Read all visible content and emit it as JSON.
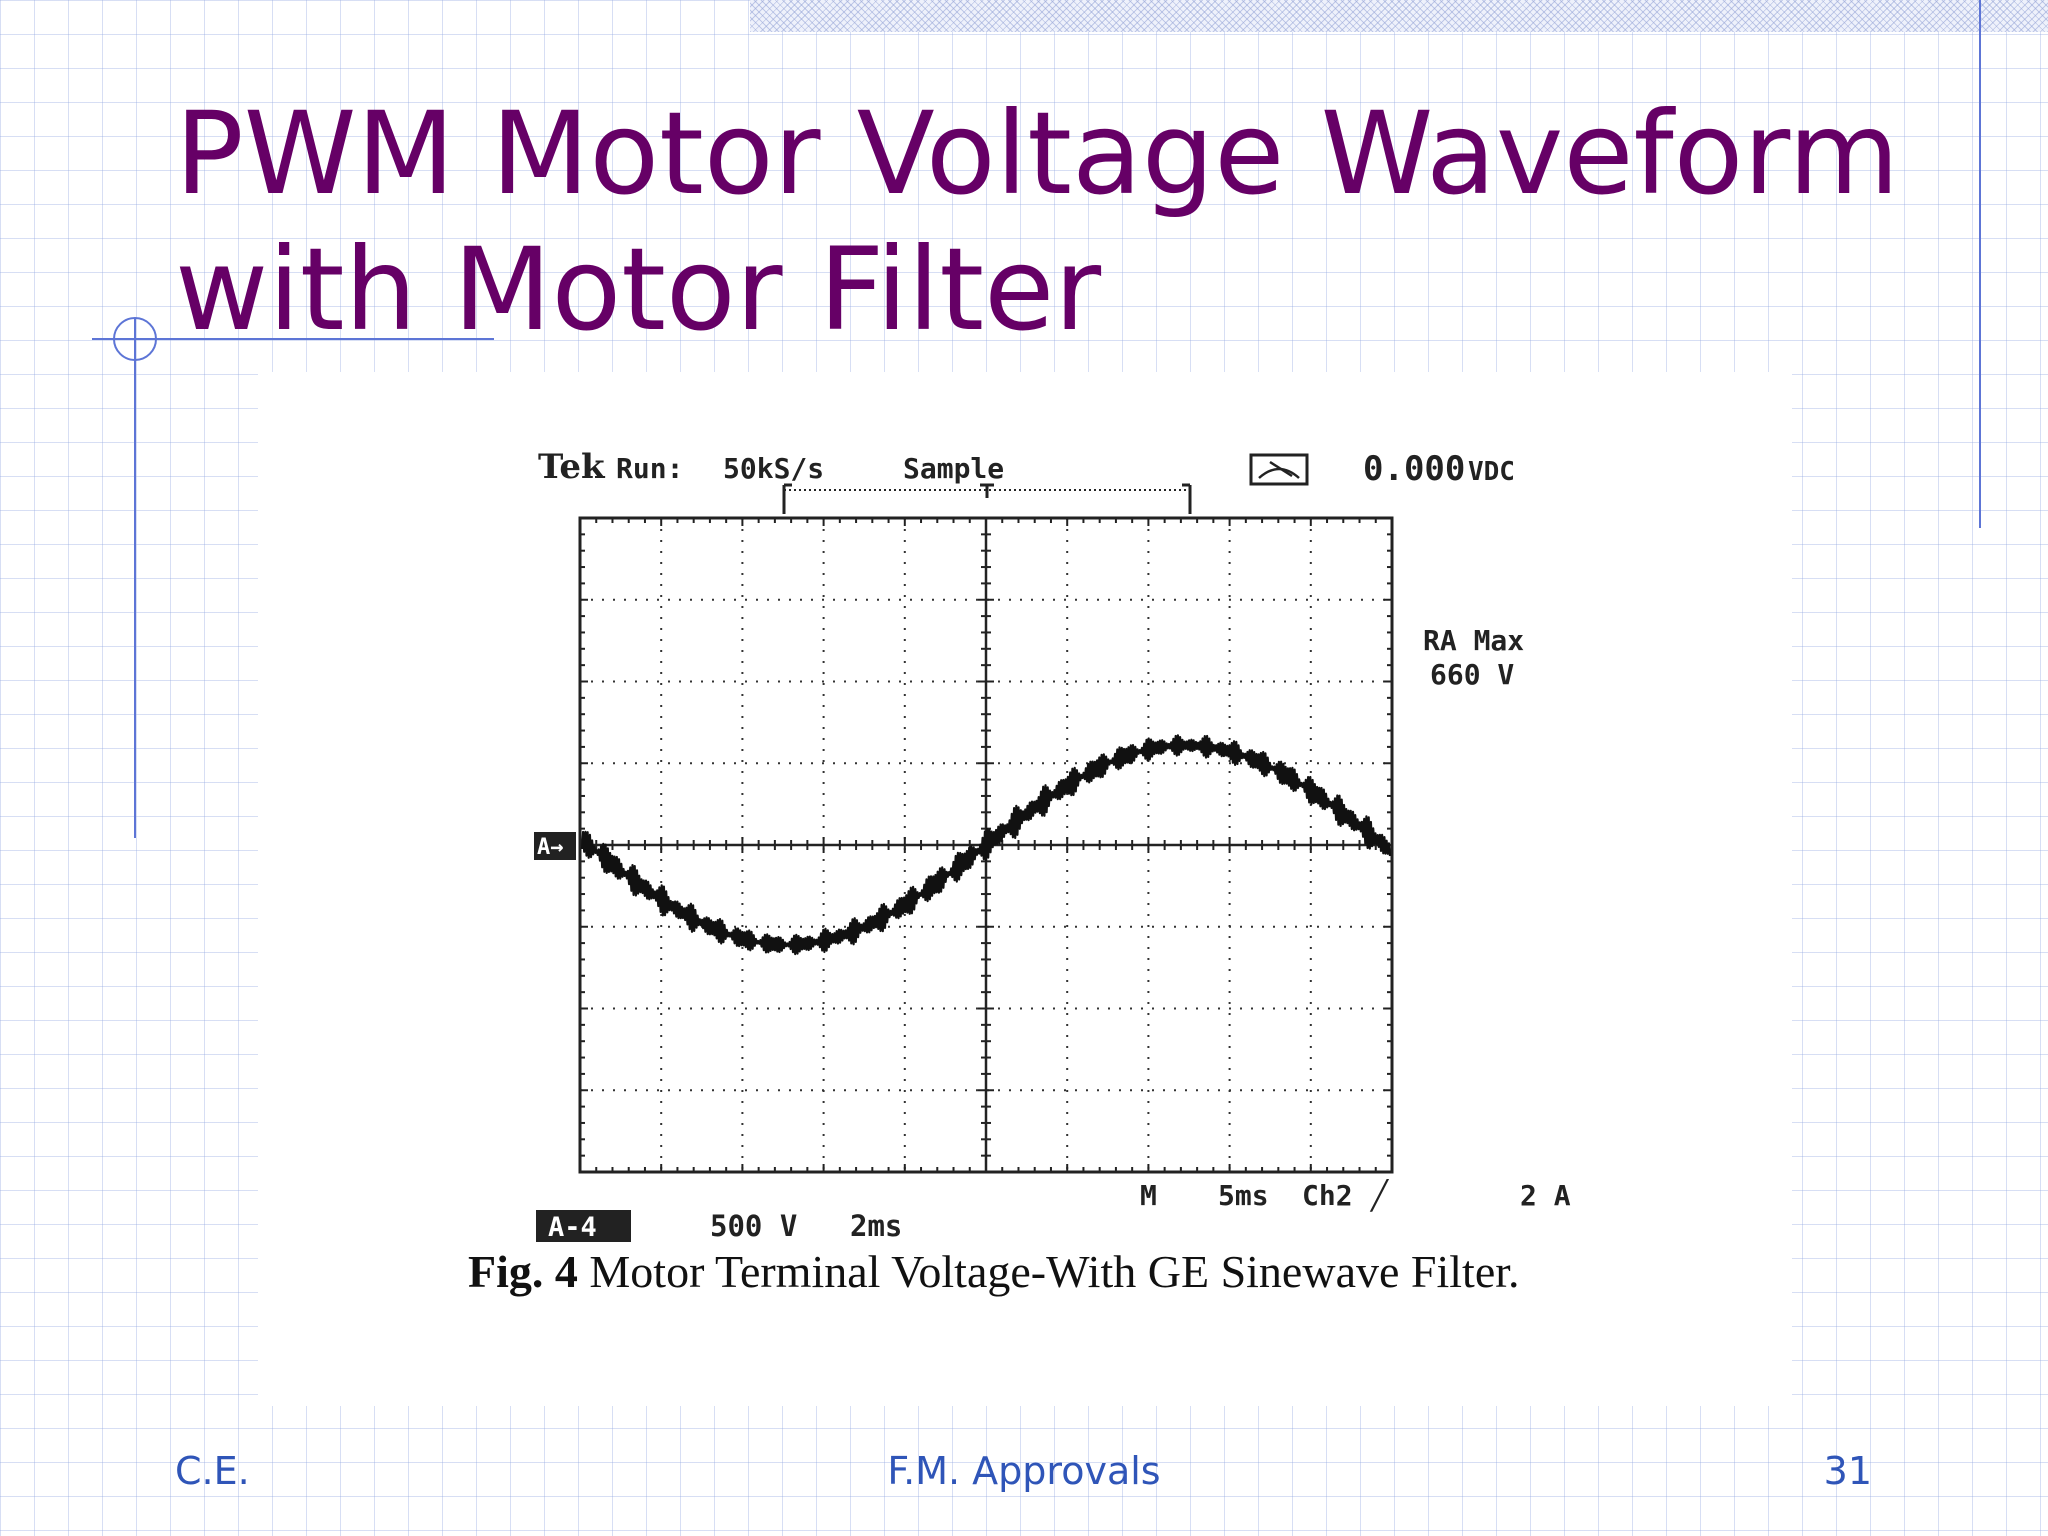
{
  "slide": {
    "title_line1": "PWM Motor Voltage Waveform",
    "title_line2": "with Motor Filter",
    "footer_left": "C.E.",
    "footer_center": "F.M. Approvals",
    "page_number": "31",
    "colors": {
      "title": "#660066",
      "footer": "#2f55b8",
      "accent_lines": "#5d75d6"
    }
  },
  "figure": {
    "scope": {
      "brand": "Tek",
      "run_label": "Run:",
      "sample_rate": "50kS/s",
      "acq_mode": "Sample",
      "dc_reading": "0.000",
      "dc_unit": "VDC",
      "max_label": "RA Max",
      "max_value": "660 V",
      "channel_marker": "A→",
      "channel_badge": "A-4",
      "vertical_scale": "500 V",
      "horizontal_scale": "2ms",
      "timebase": "M",
      "timebase_value": "5ms",
      "trigger_source": "Ch2",
      "trigger_slope": "╱",
      "current_scale": "2 A"
    },
    "caption_prefix": "Fig. 4",
    "caption_text": " Motor Terminal Voltage-With GE Sinewave Filter."
  }
}
